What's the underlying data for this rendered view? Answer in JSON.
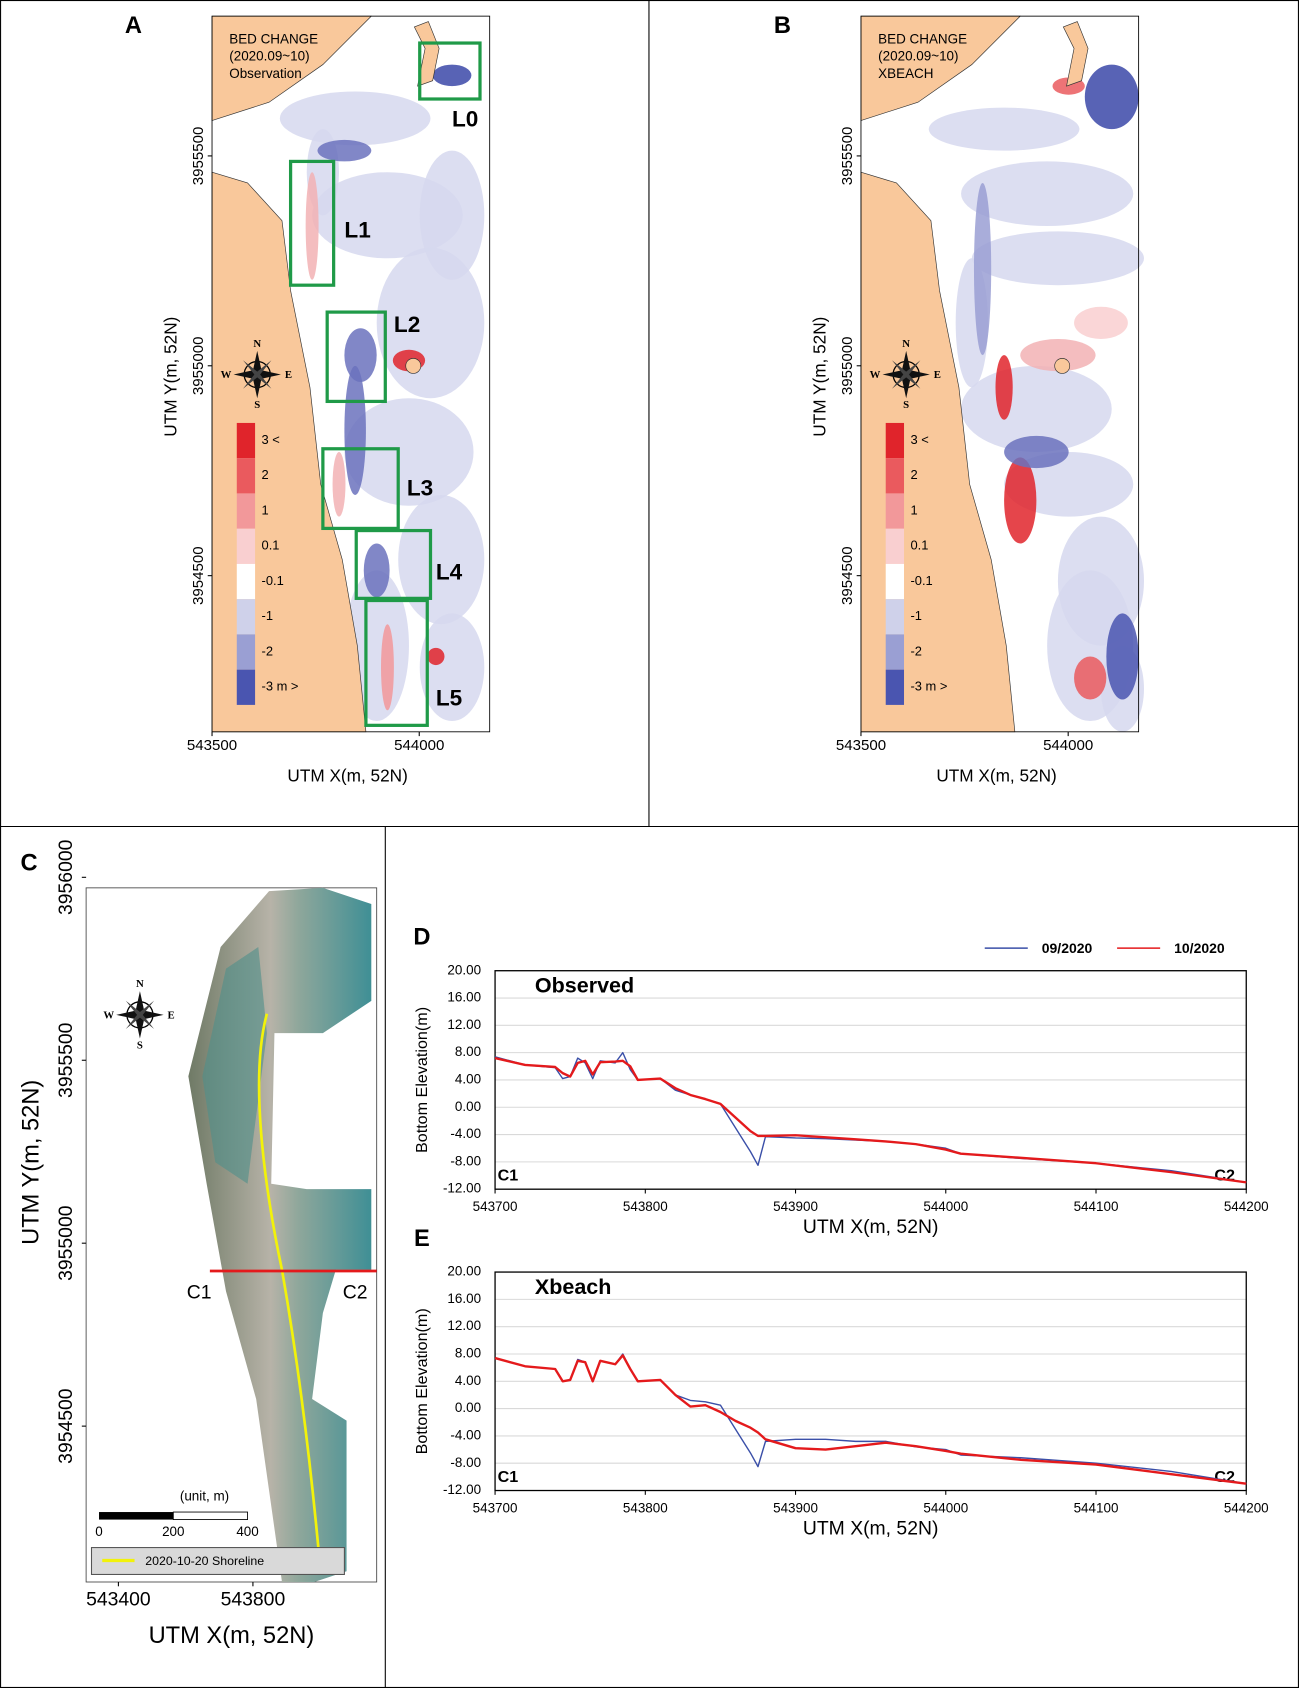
{
  "chart_data": [
    {
      "type": "map",
      "panel": "A",
      "text_lines": [
        "BED CHANGE",
        "(2020.09~10)",
        "Observation"
      ],
      "xlabel": "UTM X(m, 52N)",
      "ylabel": "UTM Y(m, 52N)",
      "xlim": [
        543500,
        544170
      ],
      "ylim": [
        3954128,
        3955833
      ],
      "xticks": [
        543500,
        544000
      ],
      "yticks": [
        3954500,
        3955000,
        3955500
      ],
      "colorbar": {
        "labels": [
          "3 <",
          "2",
          "1",
          "0.1",
          "-0.1",
          "-1",
          "-2",
          "-3 m >"
        ],
        "colors": [
          "#e0242b",
          "#ea5a5e",
          "#f2989a",
          "#f9cfd0",
          "#ffffff",
          "#cfd1ea",
          "#9a9fd3",
          "#4a55b0"
        ]
      },
      "boxes": [
        "L0",
        "L1",
        "L2",
        "L3",
        "L4",
        "L5"
      ],
      "box_color": "#1f9a48",
      "compass": [
        "N",
        "E",
        "S",
        "W"
      ]
    },
    {
      "type": "map",
      "panel": "B",
      "text_lines": [
        "BED CHANGE",
        "(2020.09~10)",
        "XBEACH"
      ],
      "xlabel": "UTM X(m, 52N)",
      "ylabel": "UTM Y(m, 52N)",
      "xlim": [
        543500,
        544170
      ],
      "ylim": [
        3954128,
        3955833
      ],
      "xticks": [
        543500,
        544000
      ],
      "yticks": [
        3954500,
        3955000,
        3955500
      ],
      "colorbar": {
        "labels": [
          "3 <",
          "2",
          "1",
          "0.1",
          "-0.1",
          "-1",
          "-2",
          "-3 m >"
        ],
        "colors": [
          "#e0242b",
          "#ea5a5e",
          "#f2989a",
          "#f9cfd0",
          "#ffffff",
          "#cfd1ea",
          "#9a9fd3",
          "#4a55b0"
        ]
      },
      "compass": [
        "N",
        "E",
        "S",
        "W"
      ]
    },
    {
      "type": "photo-map",
      "panel": "C",
      "xlabel": "UTM X(m, 52N)",
      "ylabel": "UTM Y(m, 52N)",
      "xlim": [
        543304,
        544168
      ],
      "ylim": [
        3954074,
        3956030
      ],
      "xticks": [
        543400,
        543800
      ],
      "yticks": [
        3954500,
        3955000,
        3955500,
        3956000
      ],
      "section_labels": [
        "C1",
        "C2"
      ],
      "scalebar": {
        "title": "(unit, m)",
        "ticks": [
          0,
          200,
          400
        ]
      },
      "legend": "2020-10-20 Shoreline",
      "compass": [
        "N",
        "E",
        "S",
        "W"
      ]
    },
    {
      "type": "line",
      "panel": "D",
      "title": "Observed",
      "xlabel": "UTM X(m, 52N)",
      "ylabel": "Bottom Elevation(m)",
      "annotations": [
        "C1",
        "C2"
      ],
      "grid": true,
      "xlim": [
        543700,
        544200
      ],
      "xticks": [
        543700,
        543800,
        543900,
        544000,
        544100,
        544200
      ],
      "ylim": [
        -12,
        20
      ],
      "yticks": [
        {
          "value": -12,
          "label": "-12.00"
        },
        {
          "value": -8,
          "label": "-8.00"
        },
        {
          "value": -4,
          "label": "-4.00"
        },
        {
          "value": 0,
          "label": "0.00"
        },
        {
          "value": 4,
          "label": "4.00"
        },
        {
          "value": 8,
          "label": "8.00"
        },
        {
          "value": 12,
          "label": "12.00"
        },
        {
          "value": 16,
          "label": "16.00"
        },
        {
          "value": 20,
          "label": "20.00"
        }
      ],
      "x": [
        543700,
        543720,
        543740,
        543745,
        543750,
        543755,
        543760,
        543765,
        543770,
        543780,
        543785,
        543790,
        543795,
        543810,
        543820,
        543830,
        543840,
        543850,
        543860,
        543870,
        543875,
        543880,
        543900,
        543920,
        543940,
        543960,
        543980,
        544000,
        544010,
        544050,
        544100,
        544150,
        544200
      ],
      "series": [
        {
          "name": "09/2020",
          "color": "#3a4fa8",
          "values": [
            7.4,
            6.2,
            5.8,
            4.2,
            4.5,
            7.2,
            6.5,
            4.2,
            6.8,
            6.5,
            8.0,
            5.5,
            4.0,
            4.2,
            2.5,
            1.8,
            1.2,
            0.5,
            -3.0,
            -6.5,
            -8.5,
            -4.3,
            -4.5,
            -4.6,
            -4.8,
            -5.0,
            -5.4,
            -6.0,
            -6.8,
            -7.5,
            -8.2,
            -9.3,
            -11.0
          ]
        },
        {
          "name": "10/2020",
          "color": "#e41a1c",
          "values": [
            7.2,
            6.2,
            5.9,
            5.0,
            4.5,
            6.5,
            6.8,
            4.8,
            6.6,
            6.7,
            6.8,
            6.0,
            4.0,
            4.2,
            2.8,
            1.8,
            1.2,
            0.5,
            -1.5,
            -3.5,
            -4.2,
            -4.2,
            -4.1,
            -4.4,
            -4.7,
            -5.0,
            -5.4,
            -6.2,
            -6.8,
            -7.4,
            -8.2,
            -9.5,
            -11.0
          ]
        }
      ]
    },
    {
      "type": "line",
      "panel": "E",
      "title": "Xbeach",
      "xlabel": "UTM X(m, 52N)",
      "ylabel": "Bottom Elevation(m)",
      "annotations": [
        "C1",
        "C2"
      ],
      "grid": true,
      "xlim": [
        543700,
        544200
      ],
      "xticks": [
        543700,
        543800,
        543900,
        544000,
        544100,
        544200
      ],
      "ylim": [
        -12,
        20
      ],
      "yticks": [
        {
          "value": -12,
          "label": "-12.00"
        },
        {
          "value": -8,
          "label": "-8.00"
        },
        {
          "value": -4,
          "label": "-4.00"
        },
        {
          "value": 0,
          "label": "0.00"
        },
        {
          "value": 4,
          "label": "4.00"
        },
        {
          "value": 8,
          "label": "8.00"
        },
        {
          "value": 12,
          "label": "12.00"
        },
        {
          "value": 16,
          "label": "16.00"
        },
        {
          "value": 20,
          "label": "20.00"
        }
      ],
      "x": [
        543700,
        543720,
        543740,
        543745,
        543750,
        543755,
        543760,
        543765,
        543770,
        543780,
        543785,
        543790,
        543795,
        543810,
        543820,
        543830,
        543840,
        543850,
        543860,
        543870,
        543875,
        543880,
        543900,
        543920,
        543940,
        543960,
        543980,
        544000,
        544010,
        544050,
        544100,
        544150,
        544200
      ],
      "series": [
        {
          "color": "#3a4fa8",
          "values": [
            7.4,
            6.2,
            5.8,
            4.0,
            4.2,
            7.2,
            6.8,
            4.0,
            7.0,
            6.5,
            8.0,
            5.8,
            4.0,
            4.2,
            2.0,
            1.2,
            1.0,
            0.5,
            -3.0,
            -6.5,
            -8.5,
            -4.8,
            -4.5,
            -4.5,
            -4.8,
            -4.8,
            -5.6,
            -6.0,
            -6.8,
            -7.2,
            -8.0,
            -9.2,
            -11.0
          ]
        },
        {
          "color": "#e41a1c",
          "values": [
            7.4,
            6.2,
            5.8,
            4.0,
            4.2,
            7.0,
            6.8,
            4.0,
            7.0,
            6.5,
            7.8,
            5.8,
            4.0,
            4.2,
            2.0,
            0.3,
            0.5,
            -0.5,
            -1.8,
            -2.8,
            -3.5,
            -4.5,
            -5.8,
            -6.0,
            -5.5,
            -5.0,
            -5.5,
            -6.2,
            -6.6,
            -7.5,
            -8.2,
            -9.6,
            -11.0
          ]
        }
      ]
    }
  ]
}
